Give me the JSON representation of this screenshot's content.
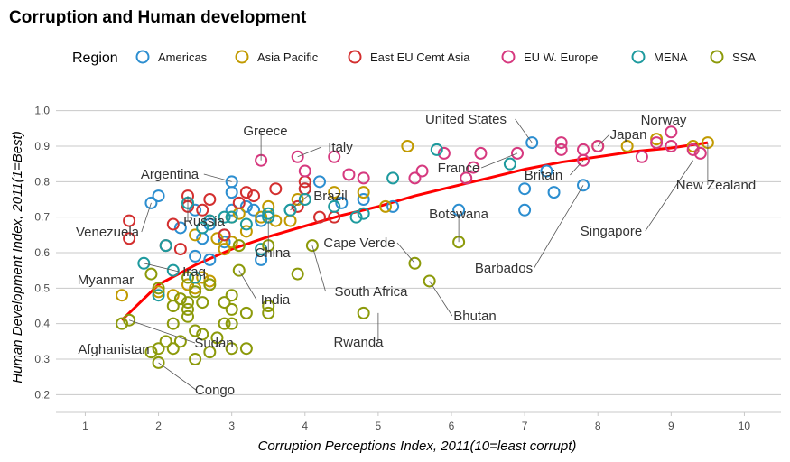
{
  "chart_data": {
    "type": "scatter",
    "title": "Corruption and Human development",
    "xlabel": "Corruption Perceptions Index, 2011(10=least corrupt)",
    "ylabel": "Human Development Index, 2011(1=Best)",
    "xlim": [
      0.6,
      10.5
    ],
    "ylim": [
      0.15,
      1.05
    ],
    "xticks": [
      1,
      2,
      3,
      4,
      5,
      6,
      7,
      8,
      9,
      10
    ],
    "yticks": [
      0.2,
      0.3,
      0.4,
      0.5,
      0.6,
      0.7,
      0.8,
      0.9,
      1.0
    ],
    "grid": "horizontal",
    "legend": {
      "title": "Region",
      "placement": "top",
      "entries": [
        {
          "name": "Americas",
          "color": "#2C8ED0"
        },
        {
          "name": "Asia Pacific",
          "color": "#C19A00"
        },
        {
          "name": "East EU Cemt Asia",
          "color": "#D32F2F"
        },
        {
          "name": "EU W. Europe",
          "color": "#D6397F"
        },
        {
          "name": "MENA",
          "color": "#1E9A9E"
        },
        {
          "name": "SSA",
          "color": "#8C9A0A"
        }
      ]
    },
    "trend": {
      "name": "fitted log curve",
      "color": "#FF0000",
      "x": [
        1.5,
        2.0,
        2.5,
        3.0,
        3.5,
        4.0,
        4.5,
        5.0,
        5.5,
        6.0,
        6.5,
        7.0,
        7.5,
        8.0,
        8.5,
        9.0,
        9.5
      ],
      "y": [
        0.41,
        0.51,
        0.565,
        0.61,
        0.645,
        0.675,
        0.705,
        0.73,
        0.76,
        0.785,
        0.81,
        0.835,
        0.855,
        0.87,
        0.885,
        0.895,
        0.91
      ]
    },
    "series": [
      {
        "name": "Americas",
        "points": [
          [
            1.9,
            0.74
          ],
          [
            2.0,
            0.76
          ],
          [
            2.3,
            0.67
          ],
          [
            2.5,
            0.72
          ],
          [
            2.6,
            0.64
          ],
          [
            2.7,
            0.58
          ],
          [
            2.5,
            0.59
          ],
          [
            2.7,
            0.68
          ],
          [
            2.9,
            0.65
          ],
          [
            3.0,
            0.8
          ],
          [
            3.0,
            0.77
          ],
          [
            3.2,
            0.73
          ],
          [
            3.3,
            0.72
          ],
          [
            3.4,
            0.69
          ],
          [
            3.0,
            0.72
          ],
          [
            2.9,
            0.63
          ],
          [
            3.4,
            0.58
          ],
          [
            3.5,
            0.7
          ],
          [
            3.8,
            0.72
          ],
          [
            4.0,
            0.78
          ],
          [
            4.2,
            0.8
          ],
          [
            4.5,
            0.74
          ],
          [
            4.8,
            0.75
          ],
          [
            5.2,
            0.73
          ],
          [
            6.1,
            0.72
          ],
          [
            7.0,
            0.72
          ],
          [
            7.0,
            0.78
          ],
          [
            7.1,
            0.91
          ],
          [
            7.3,
            0.83
          ],
          [
            7.4,
            0.77
          ],
          [
            7.8,
            0.79
          ]
        ]
      },
      {
        "name": "Asia Pacific",
        "points": [
          [
            1.5,
            0.48
          ],
          [
            2.0,
            0.49
          ],
          [
            2.2,
            0.48
          ],
          [
            2.4,
            0.51
          ],
          [
            2.5,
            0.5
          ],
          [
            2.5,
            0.65
          ],
          [
            2.6,
            0.53
          ],
          [
            2.7,
            0.52
          ],
          [
            2.8,
            0.64
          ],
          [
            2.9,
            0.61
          ],
          [
            3.0,
            0.63
          ],
          [
            3.0,
            0.7
          ],
          [
            3.1,
            0.71
          ],
          [
            3.2,
            0.66
          ],
          [
            3.4,
            0.7
          ],
          [
            3.5,
            0.73
          ],
          [
            3.6,
            0.69
          ],
          [
            3.8,
            0.69
          ],
          [
            3.9,
            0.75
          ],
          [
            4.4,
            0.77
          ],
          [
            4.8,
            0.77
          ],
          [
            5.1,
            0.73
          ],
          [
            5.4,
            0.9
          ],
          [
            8.0,
            0.9
          ],
          [
            8.4,
            0.9
          ],
          [
            8.8,
            0.92
          ],
          [
            9.3,
            0.9
          ],
          [
            9.5,
            0.91
          ]
        ]
      },
      {
        "name": "East EU Cemt Asia",
        "points": [
          [
            1.6,
            0.69
          ],
          [
            1.6,
            0.64
          ],
          [
            2.1,
            0.62
          ],
          [
            2.2,
            0.68
          ],
          [
            2.3,
            0.61
          ],
          [
            2.4,
            0.73
          ],
          [
            2.4,
            0.76
          ],
          [
            2.6,
            0.72
          ],
          [
            2.7,
            0.75
          ],
          [
            2.7,
            0.69
          ],
          [
            2.9,
            0.65
          ],
          [
            3.1,
            0.74
          ],
          [
            3.2,
            0.77
          ],
          [
            3.3,
            0.76
          ],
          [
            3.6,
            0.78
          ],
          [
            3.9,
            0.73
          ],
          [
            4.0,
            0.78
          ],
          [
            4.0,
            0.8
          ],
          [
            4.2,
            0.7
          ],
          [
            4.4,
            0.7
          ]
        ]
      },
      {
        "name": "EU W. Europe",
        "points": [
          [
            3.4,
            0.86
          ],
          [
            3.9,
            0.87
          ],
          [
            4.0,
            0.83
          ],
          [
            4.4,
            0.87
          ],
          [
            4.6,
            0.82
          ],
          [
            4.8,
            0.81
          ],
          [
            5.5,
            0.81
          ],
          [
            5.6,
            0.83
          ],
          [
            5.9,
            0.88
          ],
          [
            6.2,
            0.81
          ],
          [
            6.3,
            0.84
          ],
          [
            6.4,
            0.88
          ],
          [
            6.9,
            0.88
          ],
          [
            7.5,
            0.89
          ],
          [
            7.5,
            0.91
          ],
          [
            7.8,
            0.86
          ],
          [
            7.8,
            0.89
          ],
          [
            8.0,
            0.9
          ],
          [
            8.6,
            0.87
          ],
          [
            8.8,
            0.91
          ],
          [
            9.0,
            0.9
          ],
          [
            9.0,
            0.94
          ],
          [
            9.3,
            0.89
          ],
          [
            9.4,
            0.88
          ]
        ]
      },
      {
        "name": "MENA",
        "points": [
          [
            1.8,
            0.57
          ],
          [
            2.0,
            0.48
          ],
          [
            2.1,
            0.62
          ],
          [
            2.2,
            0.55
          ],
          [
            2.4,
            0.74
          ],
          [
            2.5,
            0.53
          ],
          [
            2.6,
            0.67
          ],
          [
            2.7,
            0.69
          ],
          [
            2.9,
            0.7
          ],
          [
            3.0,
            0.7
          ],
          [
            3.2,
            0.68
          ],
          [
            3.4,
            0.61
          ],
          [
            3.5,
            0.7
          ],
          [
            3.5,
            0.71
          ],
          [
            3.8,
            0.72
          ],
          [
            4.0,
            0.75
          ],
          [
            4.4,
            0.73
          ],
          [
            4.7,
            0.7
          ],
          [
            4.8,
            0.71
          ],
          [
            5.2,
            0.81
          ],
          [
            5.8,
            0.89
          ],
          [
            6.8,
            0.85
          ]
        ]
      },
      {
        "name": "SSA",
        "points": [
          [
            1.5,
            0.4
          ],
          [
            1.6,
            0.41
          ],
          [
            1.9,
            0.32
          ],
          [
            1.9,
            0.54
          ],
          [
            2.0,
            0.29
          ],
          [
            2.0,
            0.33
          ],
          [
            2.0,
            0.5
          ],
          [
            2.1,
            0.35
          ],
          [
            2.2,
            0.33
          ],
          [
            2.2,
            0.4
          ],
          [
            2.2,
            0.45
          ],
          [
            2.3,
            0.35
          ],
          [
            2.3,
            0.47
          ],
          [
            2.4,
            0.42
          ],
          [
            2.4,
            0.44
          ],
          [
            2.4,
            0.46
          ],
          [
            2.4,
            0.53
          ],
          [
            2.5,
            0.3
          ],
          [
            2.5,
            0.38
          ],
          [
            2.5,
            0.49
          ],
          [
            2.6,
            0.37
          ],
          [
            2.6,
            0.46
          ],
          [
            2.7,
            0.32
          ],
          [
            2.7,
            0.51
          ],
          [
            2.8,
            0.36
          ],
          [
            2.9,
            0.4
          ],
          [
            2.9,
            0.46
          ],
          [
            3.0,
            0.33
          ],
          [
            3.0,
            0.4
          ],
          [
            3.0,
            0.44
          ],
          [
            3.0,
            0.48
          ],
          [
            3.1,
            0.62
          ],
          [
            3.1,
            0.55
          ],
          [
            3.2,
            0.33
          ],
          [
            3.2,
            0.43
          ],
          [
            3.5,
            0.45
          ],
          [
            3.5,
            0.43
          ],
          [
            3.5,
            0.62
          ],
          [
            3.9,
            0.54
          ],
          [
            4.1,
            0.62
          ],
          [
            4.8,
            0.43
          ],
          [
            5.5,
            0.57
          ],
          [
            5.7,
            0.52
          ],
          [
            6.1,
            0.63
          ]
        ]
      }
    ],
    "annotations": [
      {
        "label": "Greece",
        "x": 3.4,
        "y": 0.86
      },
      {
        "label": "Italy",
        "x": 3.9,
        "y": 0.87
      },
      {
        "label": "United States",
        "x": 7.1,
        "y": 0.91
      },
      {
        "label": "Norway",
        "x": 9.0,
        "y": 0.94
      },
      {
        "label": "Japan",
        "x": 8.0,
        "y": 0.9
      },
      {
        "label": "France",
        "x": 6.9,
        "y": 0.88
      },
      {
        "label": "Britain",
        "x": 7.8,
        "y": 0.86
      },
      {
        "label": "New Zealand",
        "x": 9.5,
        "y": 0.91
      },
      {
        "label": "Argentina",
        "x": 3.0,
        "y": 0.8
      },
      {
        "label": "Brazil",
        "x": 3.8,
        "y": 0.72
      },
      {
        "label": "Venezuela",
        "x": 1.9,
        "y": 0.74
      },
      {
        "label": "Russia",
        "x": 2.4,
        "y": 0.76
      },
      {
        "label": "Botswana",
        "x": 6.1,
        "y": 0.63
      },
      {
        "label": "Singapore",
        "x": 9.3,
        "y": 0.86
      },
      {
        "label": "Cape Verde",
        "x": 5.5,
        "y": 0.57
      },
      {
        "label": "China",
        "x": 3.5,
        "y": 0.69
      },
      {
        "label": "Barbados",
        "x": 7.8,
        "y": 0.79
      },
      {
        "label": "Myanmar",
        "x": 1.5,
        "y": 0.48
      },
      {
        "label": "Iraq",
        "x": 1.8,
        "y": 0.57
      },
      {
        "label": "India",
        "x": 3.1,
        "y": 0.55
      },
      {
        "label": "South Africa",
        "x": 4.1,
        "y": 0.62
      },
      {
        "label": "Bhutan",
        "x": 5.7,
        "y": 0.52
      },
      {
        "label": "Rwanda",
        "x": 5.0,
        "y": 0.43
      },
      {
        "label": "Afghanistan",
        "x": 1.5,
        "y": 0.4
      },
      {
        "label": "Sudan",
        "x": 1.6,
        "y": 0.41
      },
      {
        "label": "Congo",
        "x": 2.0,
        "y": 0.29
      }
    ]
  }
}
